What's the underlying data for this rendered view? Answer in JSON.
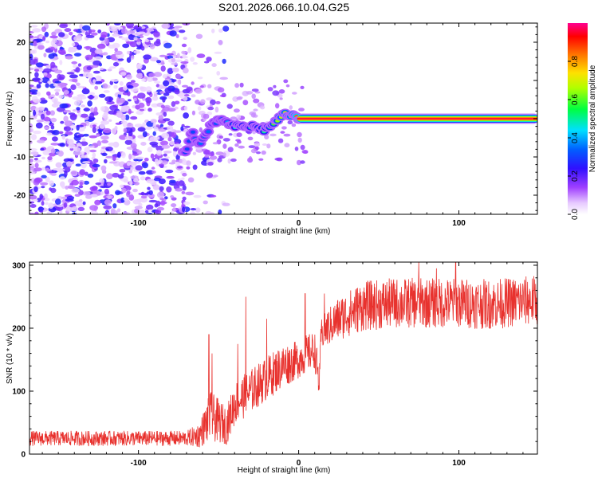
{
  "title": "S201.2026.066.10.04.G25",
  "colors": {
    "snr_line": "#e8322e",
    "plot_bg": "#ffffff",
    "frame": "#000000"
  },
  "chart_data": [
    {
      "type": "heatmap",
      "name": "frequency-vs-height",
      "xlabel": "Height of straight line (km)",
      "ylabel": "Frequency (Hz)",
      "xlim": [
        -168,
        149
      ],
      "ylim": [
        -25,
        25
      ],
      "x_ticks": [
        -100,
        0,
        100
      ],
      "x_tick_labels": [
        "-100",
        "0",
        "100"
      ],
      "y_ticks": [
        -20,
        -10,
        0,
        10,
        20
      ],
      "y_tick_labels": [
        "-20",
        "-10",
        "0",
        "10",
        "20"
      ],
      "colormap": "rainbow (white → violet → blue → cyan → green → yellow → orange → red → magenta)",
      "colorbar": {
        "label": "Normalized spectral amplitude",
        "range": [
          0,
          1
        ],
        "ticks": [
          0.0,
          0.2,
          0.4,
          0.6,
          0.8
        ],
        "tick_labels": [
          "0.0",
          "0.2",
          "0.4",
          "0.6",
          "0.8"
        ]
      },
      "description_points": {
        "noise_region_x": [
          -168,
          -70
        ],
        "ridge": [
          {
            "x": -70,
            "freq": -9,
            "amp": 0.3
          },
          {
            "x": -67,
            "freq": -3,
            "amp": 0.3
          },
          {
            "x": -62,
            "freq": -7,
            "amp": 0.35
          },
          {
            "x": -55,
            "freq": -2,
            "amp": 0.35
          },
          {
            "x": -48,
            "freq": 0,
            "amp": 0.3
          },
          {
            "x": -42,
            "freq": -2,
            "amp": 0.45
          },
          {
            "x": -35,
            "freq": -2,
            "amp": 0.5
          },
          {
            "x": -28,
            "freq": -2,
            "amp": 0.5
          },
          {
            "x": -21,
            "freq": -3,
            "amp": 0.5
          },
          {
            "x": -15,
            "freq": -1,
            "amp": 0.6
          },
          {
            "x": -10,
            "freq": 1,
            "amp": 0.7
          },
          {
            "x": -5,
            "freq": 1,
            "amp": 0.7
          },
          {
            "x": 0,
            "freq": 0,
            "amp": 0.9
          },
          {
            "x": 149,
            "freq": 0,
            "amp": 0.9
          }
        ]
      }
    },
    {
      "type": "line",
      "name": "snr-vs-height",
      "xlabel": "Height of straight line (km)",
      "ylabel": "SNR (10 * v/v)",
      "xlim": [
        -168,
        149
      ],
      "ylim": [
        0,
        305
      ],
      "x_ticks": [
        -100,
        0,
        100
      ],
      "x_tick_labels": [
        "-100",
        "0",
        "100"
      ],
      "y_ticks": [
        0,
        100,
        200,
        300
      ],
      "y_tick_labels": [
        "0",
        "100",
        "200",
        "300"
      ],
      "series": [
        {
          "name": "SNR",
          "envelope_x": [
            -168,
            -70,
            -62,
            -55,
            -45,
            -40,
            -30,
            -20,
            -10,
            0,
            5,
            10,
            13,
            14,
            18,
            25,
            40,
            60,
            80,
            100,
            120,
            149
          ],
          "envelope_mean": [
            25,
            25,
            30,
            60,
            45,
            80,
            100,
            120,
            140,
            150,
            160,
            165,
            110,
            190,
            200,
            215,
            235,
            240,
            240,
            240,
            238,
            245
          ],
          "envelope_spread": [
            12,
            12,
            20,
            40,
            30,
            35,
            35,
            35,
            35,
            30,
            30,
            30,
            30,
            25,
            30,
            35,
            40,
            40,
            40,
            40,
            40,
            40
          ],
          "spikes": [
            {
              "x": -56,
              "y": 190
            },
            {
              "x": -54,
              "y": 160
            },
            {
              "x": -38,
              "y": 175
            },
            {
              "x": -33,
              "y": 250
            },
            {
              "x": -20,
              "y": 215
            },
            {
              "x": 4,
              "y": 255
            },
            {
              "x": 16,
              "y": 255
            },
            {
              "x": 75,
              "y": 305
            },
            {
              "x": 86,
              "y": 295
            },
            {
              "x": 98,
              "y": 305
            }
          ]
        }
      ]
    }
  ]
}
